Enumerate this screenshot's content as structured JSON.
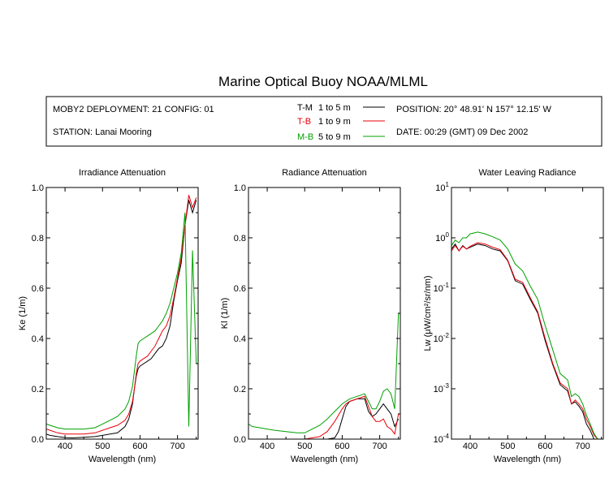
{
  "title": "Marine Optical Buoy NOAA/MLML",
  "info": {
    "deployment": "MOBY2 DEPLOYMENT: 21 CONFIG: 01",
    "station": "STATION: Lanai Mooring",
    "position": "POSITION: 20° 48.91' N   157° 12.15' W",
    "date": "DATE: 00:29 (GMT) 09 Dec 2002",
    "legend": [
      {
        "code": "T-M",
        "range": "1 to 5  m",
        "color": "#000000"
      },
      {
        "code": "T-B",
        "range": "1 to 9  m",
        "color": "#e8000b"
      },
      {
        "code": "M-B",
        "range": "5 to 9  m",
        "color": "#00a000"
      }
    ]
  },
  "colors": {
    "T-M": "#000000",
    "T-B": "#e8000b",
    "M-B": "#00a000"
  },
  "chart_data": [
    {
      "type": "line",
      "title": "Irradiance Attenuation",
      "xlabel": "Wavelength (nm)",
      "ylabel": "Ke  (1/m)",
      "xlim": [
        350,
        755
      ],
      "ylim": [
        0,
        1
      ],
      "yscale": "linear",
      "xticks": [
        400,
        500,
        600,
        700
      ],
      "yticks": [
        0,
        0.2,
        0.4,
        0.6,
        0.8,
        1.0
      ],
      "ytick_labels": [
        "0.0",
        "0.2",
        "0.4",
        "0.6",
        "0.8",
        "1.0"
      ],
      "series": [
        {
          "key": "T-M",
          "x": [
            350,
            360,
            380,
            400,
            420,
            450,
            480,
            500,
            520,
            540,
            560,
            570,
            580,
            585,
            590,
            595,
            600,
            610,
            620,
            630,
            640,
            650,
            660,
            670,
            680,
            690,
            700,
            710,
            720,
            730,
            740,
            750
          ],
          "y": [
            0.02,
            0.015,
            0.01,
            0.006,
            0.005,
            0.007,
            0.01,
            0.015,
            0.02,
            0.025,
            0.05,
            0.08,
            0.14,
            0.2,
            0.25,
            0.28,
            0.29,
            0.3,
            0.31,
            0.32,
            0.34,
            0.36,
            0.37,
            0.4,
            0.45,
            0.55,
            0.63,
            0.7,
            0.85,
            0.95,
            0.9,
            0.95
          ]
        },
        {
          "key": "T-B",
          "x": [
            350,
            360,
            380,
            400,
            420,
            450,
            480,
            500,
            520,
            540,
            560,
            570,
            580,
            585,
            590,
            595,
            600,
            610,
            620,
            630,
            640,
            650,
            660,
            670,
            680,
            690,
            700,
            710,
            720,
            730,
            740,
            750
          ],
          "y": [
            0.04,
            0.035,
            0.025,
            0.02,
            0.02,
            0.02,
            0.025,
            0.035,
            0.045,
            0.055,
            0.075,
            0.1,
            0.15,
            0.2,
            0.26,
            0.3,
            0.31,
            0.32,
            0.33,
            0.35,
            0.37,
            0.4,
            0.43,
            0.45,
            0.49,
            0.56,
            0.64,
            0.72,
            0.85,
            0.97,
            0.92,
            0.96
          ]
        },
        {
          "key": "M-B",
          "x": [
            350,
            360,
            380,
            400,
            420,
            450,
            480,
            500,
            520,
            540,
            560,
            570,
            580,
            585,
            590,
            595,
            600,
            610,
            620,
            630,
            640,
            650,
            660,
            670,
            680,
            690,
            700,
            710,
            720,
            730,
            740,
            750
          ],
          "y": [
            0.06,
            0.055,
            0.045,
            0.04,
            0.04,
            0.04,
            0.045,
            0.06,
            0.075,
            0.09,
            0.12,
            0.15,
            0.21,
            0.27,
            0.33,
            0.38,
            0.39,
            0.4,
            0.41,
            0.42,
            0.43,
            0.45,
            0.47,
            0.5,
            0.54,
            0.6,
            0.66,
            0.74,
            0.9,
            0.05,
            0.75,
            0.3
          ]
        }
      ]
    },
    {
      "type": "line",
      "title": "Radiance Attenuation",
      "xlabel": "Wavelength (nm)",
      "ylabel": "Kl  (1/m)",
      "xlim": [
        350,
        755
      ],
      "ylim": [
        0,
        1
      ],
      "yscale": "linear",
      "xticks": [
        400,
        500,
        600,
        700
      ],
      "yticks": [
        0,
        0.2,
        0.4,
        0.6,
        0.8,
        1.0
      ],
      "ytick_labels": [
        "0.0",
        "0.2",
        "0.4",
        "0.6",
        "0.8",
        "1.0"
      ],
      "series": [
        {
          "key": "T-M",
          "x": [
            540,
            560,
            580,
            590,
            600,
            610,
            620,
            640,
            660,
            670,
            680,
            690,
            700,
            710,
            720,
            730,
            740,
            750
          ],
          "y": [
            0.0,
            0.0,
            0.005,
            0.03,
            0.08,
            0.13,
            0.15,
            0.16,
            0.16,
            0.11,
            0.09,
            0.1,
            0.12,
            0.14,
            0.12,
            0.1,
            0.05,
            0.08
          ]
        },
        {
          "key": "T-B",
          "x": [
            350,
            380,
            400,
            450,
            500,
            540,
            560,
            580,
            600,
            610,
            620,
            640,
            660,
            670,
            680,
            690,
            700,
            710,
            720,
            730,
            740,
            750
          ],
          "y": [
            0.0,
            0.0,
            0.0,
            0.0,
            0.0,
            0.01,
            0.03,
            0.07,
            0.12,
            0.14,
            0.15,
            0.16,
            0.17,
            0.13,
            0.09,
            0.07,
            0.07,
            0.08,
            0.05,
            0.04,
            0.02,
            0.1
          ]
        },
        {
          "key": "M-B",
          "x": [
            350,
            360,
            380,
            400,
            420,
            450,
            480,
            500,
            520,
            540,
            560,
            580,
            600,
            610,
            620,
            640,
            660,
            670,
            680,
            690,
            700,
            710,
            720,
            730,
            740,
            750
          ],
          "y": [
            0.06,
            0.05,
            0.045,
            0.04,
            0.035,
            0.03,
            0.025,
            0.025,
            0.04,
            0.055,
            0.08,
            0.11,
            0.14,
            0.15,
            0.16,
            0.17,
            0.18,
            0.15,
            0.12,
            0.12,
            0.15,
            0.19,
            0.2,
            0.18,
            0.12,
            0.5
          ]
        }
      ]
    },
    {
      "type": "line",
      "title": "Water Leaving Radiance",
      "xlabel": "Wavelength (nm)",
      "ylabel": "Lw  (μW/cm²/sr/nm)",
      "xlim": [
        350,
        755
      ],
      "ylim": [
        0.0001,
        10
      ],
      "yscale": "log",
      "xticks": [
        400,
        500,
        600,
        700
      ],
      "yticks": [
        0.0001,
        0.001,
        0.01,
        0.1,
        1,
        10
      ],
      "ytick_labels": [
        "10-4",
        "10-3",
        "10-2",
        "10-1",
        "10 0",
        "10 1"
      ],
      "series": [
        {
          "key": "T-M",
          "x": [
            350,
            360,
            370,
            380,
            390,
            400,
            420,
            440,
            460,
            480,
            500,
            520,
            540,
            560,
            580,
            600,
            620,
            640,
            660,
            670,
            680,
            690,
            700,
            710,
            720,
            730,
            740,
            750
          ],
          "y": [
            0.6,
            0.75,
            0.55,
            0.7,
            0.6,
            0.65,
            0.75,
            0.7,
            0.6,
            0.55,
            0.35,
            0.14,
            0.12,
            0.06,
            0.032,
            0.009,
            0.003,
            0.0012,
            0.0009,
            0.0005,
            0.00055,
            0.00045,
            0.00035,
            0.0002,
            0.00015,
            0.0001,
            0.0001,
            0.0001
          ]
        },
        {
          "key": "T-B",
          "x": [
            350,
            360,
            370,
            380,
            390,
            400,
            420,
            440,
            460,
            480,
            500,
            520,
            540,
            560,
            580,
            600,
            620,
            640,
            660,
            670,
            680,
            690,
            700,
            710,
            720,
            730,
            740,
            750
          ],
          "y": [
            0.55,
            0.7,
            0.55,
            0.68,
            0.6,
            0.68,
            0.8,
            0.75,
            0.65,
            0.58,
            0.36,
            0.15,
            0.13,
            0.065,
            0.034,
            0.01,
            0.0032,
            0.0013,
            0.001,
            0.0005,
            0.0006,
            0.0005,
            0.0004,
            0.00025,
            0.00018,
            0.00012,
            0.0001,
            0.0001
          ]
        },
        {
          "key": "M-B",
          "x": [
            350,
            360,
            370,
            380,
            390,
            400,
            420,
            440,
            460,
            480,
            500,
            520,
            540,
            560,
            580,
            600,
            620,
            640,
            660,
            670,
            680,
            690,
            700,
            710,
            720,
            730,
            740,
            750
          ],
          "y": [
            0.7,
            0.9,
            0.8,
            1.0,
            1.0,
            1.2,
            1.3,
            1.2,
            1.05,
            0.9,
            0.6,
            0.3,
            0.22,
            0.11,
            0.06,
            0.018,
            0.006,
            0.002,
            0.0015,
            0.0007,
            0.0008,
            0.0007,
            0.0005,
            0.0003,
            0.0002,
            0.00013,
            0.0001,
            0.0001
          ]
        }
      ]
    }
  ]
}
